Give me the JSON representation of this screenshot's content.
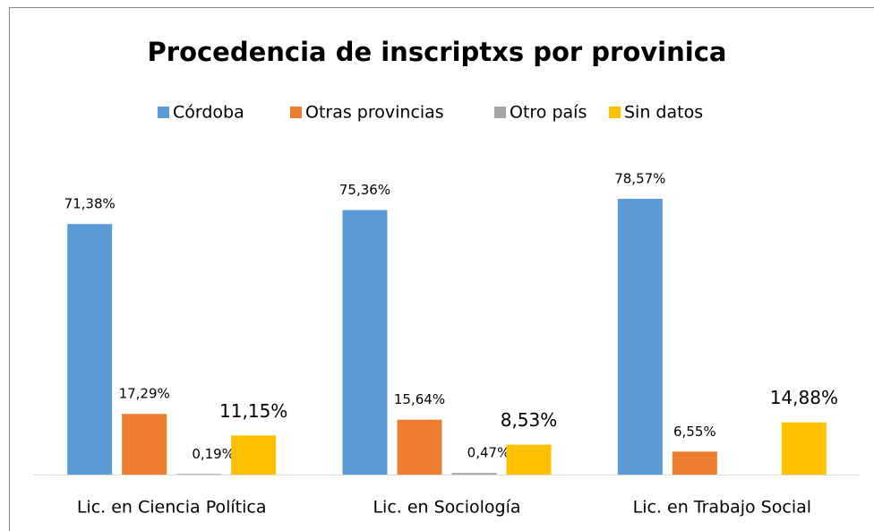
{
  "chart_data": {
    "type": "bar",
    "title": "Procedencia de inscriptxs por provinica",
    "categories": [
      "Lic. en Ciencia Política",
      "Lic. en Sociología",
      "Lic. en Trabajo Social"
    ],
    "series": [
      {
        "name": "Córdoba",
        "color": "#5b9bd5",
        "values": [
          71.38,
          75.36,
          78.57
        ],
        "value_labels": [
          "71,38%",
          "75,36%",
          "78,57%"
        ]
      },
      {
        "name": "Otras provincias",
        "color": "#ed7d31",
        "values": [
          17.29,
          15.64,
          6.55
        ],
        "value_labels": [
          "17,29%",
          "15,64%",
          "6,55%"
        ]
      },
      {
        "name": "Otro país",
        "color": "#a5a5a5",
        "values": [
          0.19,
          0.47,
          null
        ],
        "value_labels": [
          "0,19%",
          "0,47%",
          null
        ]
      },
      {
        "name": "Sin datos",
        "color": "#ffc000",
        "values": [
          11.15,
          8.53,
          14.88
        ],
        "value_labels": [
          "11,15%",
          "8,53%",
          "14,88%"
        ]
      }
    ],
    "ylim": [
      0,
      100
    ],
    "legend": "top"
  }
}
